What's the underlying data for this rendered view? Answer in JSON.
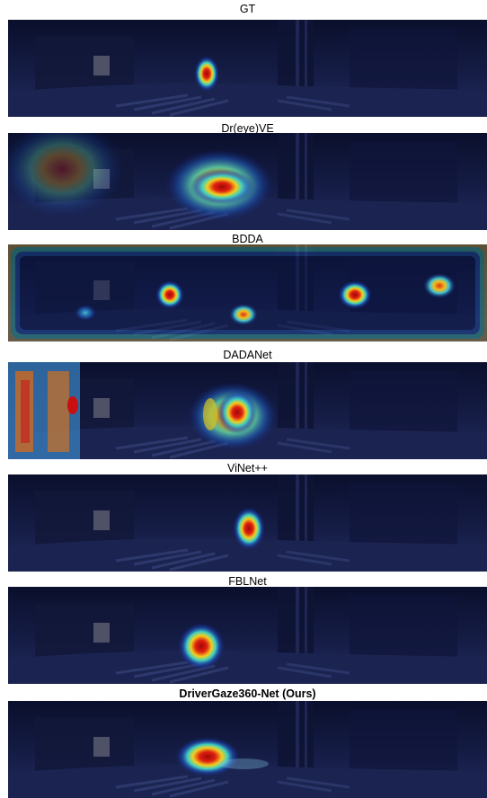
{
  "panels": [
    {
      "label": "GT",
      "bold": false,
      "heatmap": "gt"
    },
    {
      "label": "Dr(eye)VE",
      "bold": false,
      "heatmap": "dreyeve"
    },
    {
      "label": "BDDA",
      "bold": false,
      "heatmap": "bdda"
    },
    {
      "label": "DADANet",
      "bold": false,
      "heatmap": "dadanet"
    },
    {
      "label": "ViNet++",
      "bold": false,
      "heatmap": "vinet"
    },
    {
      "label": "FBLNet",
      "bold": false,
      "heatmap": "fblnet"
    },
    {
      "label": "DriverGaze360-Net (Ours)",
      "bold": true,
      "heatmap": "ours"
    }
  ],
  "colors": {
    "scene_dark": "#0b1030",
    "scene_mid": "#1a2352",
    "heat_red": "#c81010",
    "heat_yellow": "#f0e020",
    "heat_cyan": "#30c0d0",
    "heat_blue": "#1030a0"
  }
}
